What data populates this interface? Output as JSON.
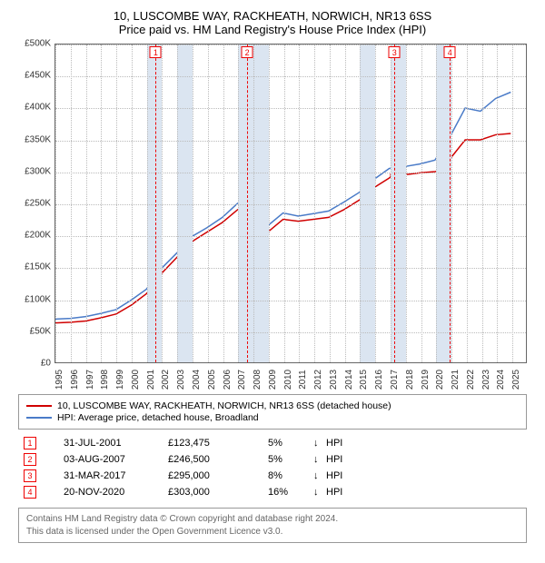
{
  "title_line1": "10, LUSCOMBE WAY, RACKHEATH, NORWICH, NR13 6SS",
  "title_line2": "Price paid vs. HM Land Registry's House Price Index (HPI)",
  "chart": {
    "type": "line",
    "background_color": "#ffffff",
    "grid_color": "#bbbbbb",
    "shade_color": "#dbe5f1",
    "x_min": 1995,
    "x_max": 2026,
    "y_min": 0,
    "y_max": 500000,
    "y_ticks": [
      {
        "v": 0,
        "label": "£0"
      },
      {
        "v": 50000,
        "label": "£50K"
      },
      {
        "v": 100000,
        "label": "£100K"
      },
      {
        "v": 150000,
        "label": "£150K"
      },
      {
        "v": 200000,
        "label": "£200K"
      },
      {
        "v": 250000,
        "label": "£250K"
      },
      {
        "v": 300000,
        "label": "£300K"
      },
      {
        "v": 350000,
        "label": "£350K"
      },
      {
        "v": 400000,
        "label": "£400K"
      },
      {
        "v": 450000,
        "label": "£450K"
      },
      {
        "v": 500000,
        "label": "£500K"
      }
    ],
    "x_ticks": [
      1995,
      1996,
      1997,
      1998,
      1999,
      2000,
      2001,
      2002,
      2003,
      2004,
      2005,
      2006,
      2007,
      2008,
      2009,
      2010,
      2011,
      2012,
      2013,
      2014,
      2015,
      2016,
      2017,
      2018,
      2019,
      2020,
      2021,
      2022,
      2023,
      2024,
      2025
    ],
    "shaded_ranges": [
      [
        2001,
        2002
      ],
      [
        2003,
        2004
      ],
      [
        2007,
        2009
      ],
      [
        2015,
        2016
      ],
      [
        2017,
        2018
      ],
      [
        2020,
        2021
      ]
    ],
    "markers": [
      {
        "n": "1",
        "x": 2001.58,
        "price": 123475
      },
      {
        "n": "2",
        "x": 2007.59,
        "price": 246500
      },
      {
        "n": "3",
        "x": 2017.25,
        "price": 295000
      },
      {
        "n": "4",
        "x": 2020.89,
        "price": 303000
      }
    ],
    "series": [
      {
        "name": "prop",
        "color": "#d00000",
        "width": 2.0,
        "points": [
          [
            1995,
            62000
          ],
          [
            1996,
            63000
          ],
          [
            1997,
            65000
          ],
          [
            1998,
            70000
          ],
          [
            1999,
            76000
          ],
          [
            2000,
            90000
          ],
          [
            2001,
            108000
          ],
          [
            2001.58,
            123475
          ],
          [
            2002,
            140000
          ],
          [
            2003,
            165000
          ],
          [
            2004,
            190000
          ],
          [
            2005,
            205000
          ],
          [
            2006,
            220000
          ],
          [
            2007,
            240000
          ],
          [
            2007.59,
            246500
          ],
          [
            2008,
            230000
          ],
          [
            2009,
            205000
          ],
          [
            2010,
            225000
          ],
          [
            2011,
            222000
          ],
          [
            2012,
            225000
          ],
          [
            2013,
            228000
          ],
          [
            2014,
            240000
          ],
          [
            2015,
            255000
          ],
          [
            2016,
            275000
          ],
          [
            2017,
            290000
          ],
          [
            2017.25,
            295000
          ],
          [
            2018,
            295000
          ],
          [
            2019,
            298000
          ],
          [
            2020,
            300000
          ],
          [
            2020.89,
            303000
          ],
          [
            2021,
            320000
          ],
          [
            2022,
            350000
          ],
          [
            2023,
            350000
          ],
          [
            2024,
            358000
          ],
          [
            2025,
            360000
          ]
        ]
      },
      {
        "name": "hpi",
        "color": "#4a7bc8",
        "width": 1.5,
        "points": [
          [
            1995,
            68000
          ],
          [
            1996,
            69000
          ],
          [
            1997,
            72000
          ],
          [
            1998,
            77000
          ],
          [
            1999,
            83000
          ],
          [
            2000,
            98000
          ],
          [
            2001,
            115000
          ],
          [
            2002,
            148000
          ],
          [
            2003,
            172000
          ],
          [
            2004,
            198000
          ],
          [
            2005,
            212000
          ],
          [
            2006,
            228000
          ],
          [
            2007,
            250000
          ],
          [
            2007.6,
            258000
          ],
          [
            2008,
            240000
          ],
          [
            2009,
            215000
          ],
          [
            2010,
            235000
          ],
          [
            2011,
            230000
          ],
          [
            2012,
            234000
          ],
          [
            2013,
            238000
          ],
          [
            2014,
            252000
          ],
          [
            2015,
            267000
          ],
          [
            2016,
            288000
          ],
          [
            2017,
            305000
          ],
          [
            2018,
            308000
          ],
          [
            2019,
            312000
          ],
          [
            2020,
            318000
          ],
          [
            2021,
            355000
          ],
          [
            2022,
            400000
          ],
          [
            2023,
            395000
          ],
          [
            2024,
            415000
          ],
          [
            2025,
            425000
          ]
        ]
      }
    ]
  },
  "legend": [
    {
      "color": "#d00000",
      "label": "10, LUSCOMBE WAY, RACKHEATH, NORWICH, NR13 6SS (detached house)"
    },
    {
      "color": "#4a7bc8",
      "label": "HPI: Average price, detached house, Broadland"
    }
  ],
  "table": [
    {
      "n": "1",
      "date": "31-JUL-2001",
      "price": "£123,475",
      "pct": "5%",
      "arrow": "↓",
      "rel": "HPI"
    },
    {
      "n": "2",
      "date": "03-AUG-2007",
      "price": "£246,500",
      "pct": "5%",
      "arrow": "↓",
      "rel": "HPI"
    },
    {
      "n": "3",
      "date": "31-MAR-2017",
      "price": "£295,000",
      "pct": "8%",
      "arrow": "↓",
      "rel": "HPI"
    },
    {
      "n": "4",
      "date": "20-NOV-2020",
      "price": "£303,000",
      "pct": "16%",
      "arrow": "↓",
      "rel": "HPI"
    }
  ],
  "footer_line1": "Contains HM Land Registry data © Crown copyright and database right 2024.",
  "footer_line2": "This data is licensed under the Open Government Licence v3.0."
}
